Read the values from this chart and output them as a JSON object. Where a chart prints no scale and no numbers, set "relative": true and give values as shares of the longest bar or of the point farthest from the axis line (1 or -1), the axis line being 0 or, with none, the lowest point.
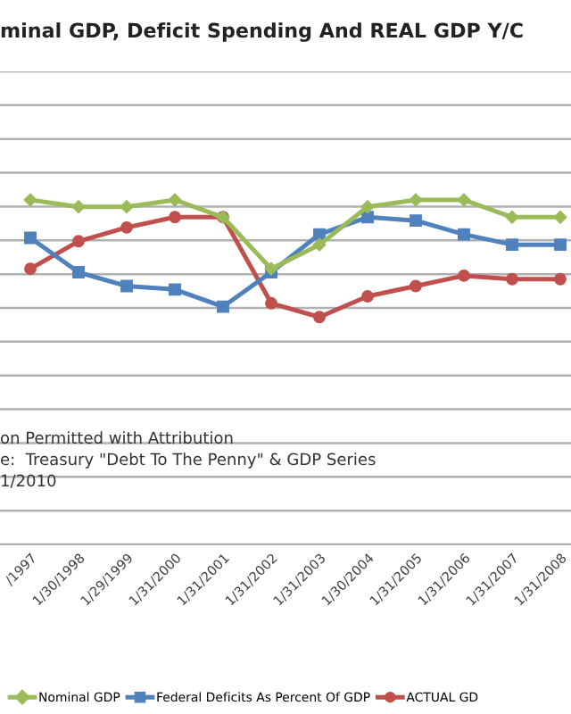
{
  "chart_data": {
    "type": "line",
    "title": "minal GDP, Deficit Spending And REAL GDP Y/C",
    "relative": true,
    "grid": "y",
    "legend": "bottom",
    "tick_labels": "x",
    "categories": [
      "/1997",
      "1/30/1998",
      "1/29/1999",
      "1/31/2000",
      "1/31/2001",
      "1/31/2002",
      "1/31/2003",
      "1/30/2004",
      "1/31/2005",
      "1/31/2006",
      "1/31/2007",
      "1/31/2008"
    ],
    "series": [
      {
        "name": "Nominal GDP",
        "color": "#9bbb59",
        "marker": "diamond",
        "values": [
          1.0,
          0.98,
          0.98,
          1.0,
          0.95,
          0.8,
          0.87,
          0.98,
          1.0,
          1.0,
          0.95,
          0.95
        ]
      },
      {
        "name": "Federal Deficits As Percent Of GDP",
        "color": "#4f81bd",
        "marker": "square",
        "values": [
          0.89,
          0.79,
          0.75,
          0.74,
          0.69,
          0.79,
          0.9,
          0.95,
          0.94,
          0.9,
          0.87,
          0.87
        ]
      },
      {
        "name": "ACTUAL GD",
        "color": "#c0504d",
        "marker": "circle",
        "values": [
          0.8,
          0.88,
          0.92,
          0.95,
          0.95,
          0.7,
          0.66,
          0.72,
          0.75,
          0.78,
          0.77,
          0.77
        ]
      }
    ],
    "annotations": [
      "on Permitted with Attribution",
      "e:  Treasury \"Debt To The Penny\" & GDP Series",
      "1/2010"
    ]
  }
}
